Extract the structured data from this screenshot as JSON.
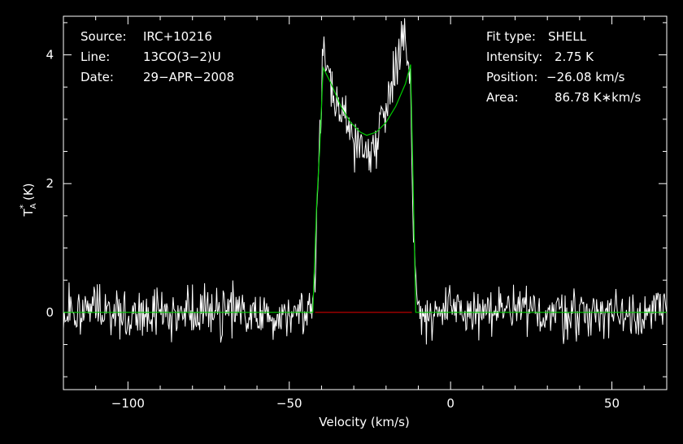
{
  "chart_data": {
    "type": "line",
    "xlabel": "Velocity (km/s)",
    "ylabel_main": "T",
    "ylabel_sup": "*",
    "ylabel_sub": "A",
    "ylabel_unit": "(K)",
    "xlim": [
      -120,
      67
    ],
    "ylim": [
      -1.2,
      4.6
    ],
    "xticks": [
      -100,
      -50,
      0,
      50
    ],
    "xtick_labels": [
      "−100",
      "−50",
      "0",
      "50"
    ],
    "yticks": [
      0,
      2,
      4
    ],
    "ytick_labels": [
      "0",
      "2",
      "4"
    ],
    "grid": false,
    "colors": {
      "background": "#000000",
      "axes": "#ffffff",
      "spectrum": "#ffffff",
      "fit": "#00cc00",
      "baseline_window": "#cc0000"
    },
    "info_left": [
      {
        "key": "Source:",
        "value": "IRC+10216"
      },
      {
        "key": "Line:",
        "value": "13CO(3−2)U"
      },
      {
        "key": "Date:",
        "value": "29−APR−2008"
      }
    ],
    "info_right": [
      {
        "key": "Fit type:",
        "value": "SHELL"
      },
      {
        "key": "Intensity:",
        "value": "2.75 K"
      },
      {
        "key": "Position:",
        "value": "−26.08 km/s"
      },
      {
        "key": "Area:",
        "value": "86.78 K∗km/s"
      }
    ],
    "series": [
      {
        "role": "spectrum",
        "channel_start": -120,
        "channel_end": 67,
        "channel_step": 0.25,
        "noise_rms": 0.2
      },
      {
        "role": "fit",
        "x": [
          -120,
          -42.7,
          -41.5,
          -40.6,
          -39.5,
          -37,
          -34,
          -31,
          -28,
          -26,
          -23,
          -20,
          -17,
          -14,
          -12.4,
          -11.6,
          -10.8,
          67
        ],
        "y": [
          0,
          0,
          1.7,
          2.5,
          3.8,
          3.55,
          3.2,
          2.95,
          2.8,
          2.75,
          2.8,
          2.95,
          3.2,
          3.55,
          3.85,
          2.0,
          0,
          0
        ]
      },
      {
        "role": "baseline_window",
        "x": [
          -42,
          -12
        ],
        "y": [
          0,
          0
        ]
      }
    ],
    "emission_profile": {
      "x": [
        -120,
        -43,
        -42,
        -41,
        -40,
        -39.5,
        -38,
        -36,
        -34,
        -32,
        -30,
        -28,
        -26,
        -24,
        -22,
        -20,
        -18,
        -16,
        -15,
        -14,
        -12.5,
        -11.5,
        -10.5,
        67
      ],
      "y": [
        0,
        0,
        0.5,
        2.2,
        3.3,
        3.9,
        3.75,
        3.45,
        3.15,
        2.9,
        2.7,
        2.55,
        2.5,
        2.6,
        2.85,
        3.2,
        3.7,
        4.1,
        4.35,
        4.1,
        3.7,
        1.5,
        0,
        0
      ]
    }
  }
}
